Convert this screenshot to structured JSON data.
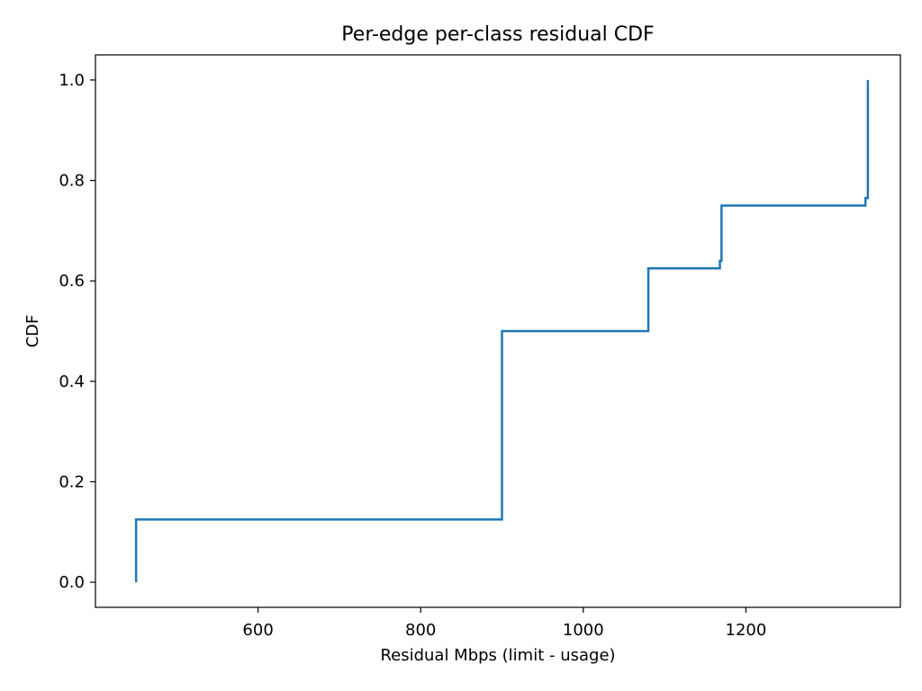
{
  "chart_data": {
    "type": "line",
    "subtype": "step-cdf",
    "title": "Per-edge per-class residual CDF",
    "xlabel": "Residual Mbps (limit - usage)",
    "ylabel": "CDF",
    "xlim": [
      400,
      1390
    ],
    "ylim": [
      -0.05,
      1.05
    ],
    "xticks": [
      600,
      800,
      1000,
      1200
    ],
    "yticks": [
      0.0,
      0.2,
      0.4,
      0.6,
      0.8,
      1.0
    ],
    "xtick_labels": [
      "600",
      "800",
      "1000",
      "1200"
    ],
    "ytick_labels": [
      "0.0",
      "0.2",
      "0.4",
      "0.6",
      "0.8",
      "1.0"
    ],
    "grid": false,
    "legend": "none",
    "series": [
      {
        "color": "#1f77b4",
        "x": [
          450,
          450,
          900,
          900,
          1080,
          1080,
          1168,
          1168,
          1170,
          1170,
          1347,
          1347,
          1350,
          1350
        ],
        "y": [
          0.0,
          0.125,
          0.125,
          0.5,
          0.5,
          0.625,
          0.625,
          0.64,
          0.64,
          0.75,
          0.75,
          0.765,
          0.765,
          1.0
        ]
      }
    ]
  }
}
